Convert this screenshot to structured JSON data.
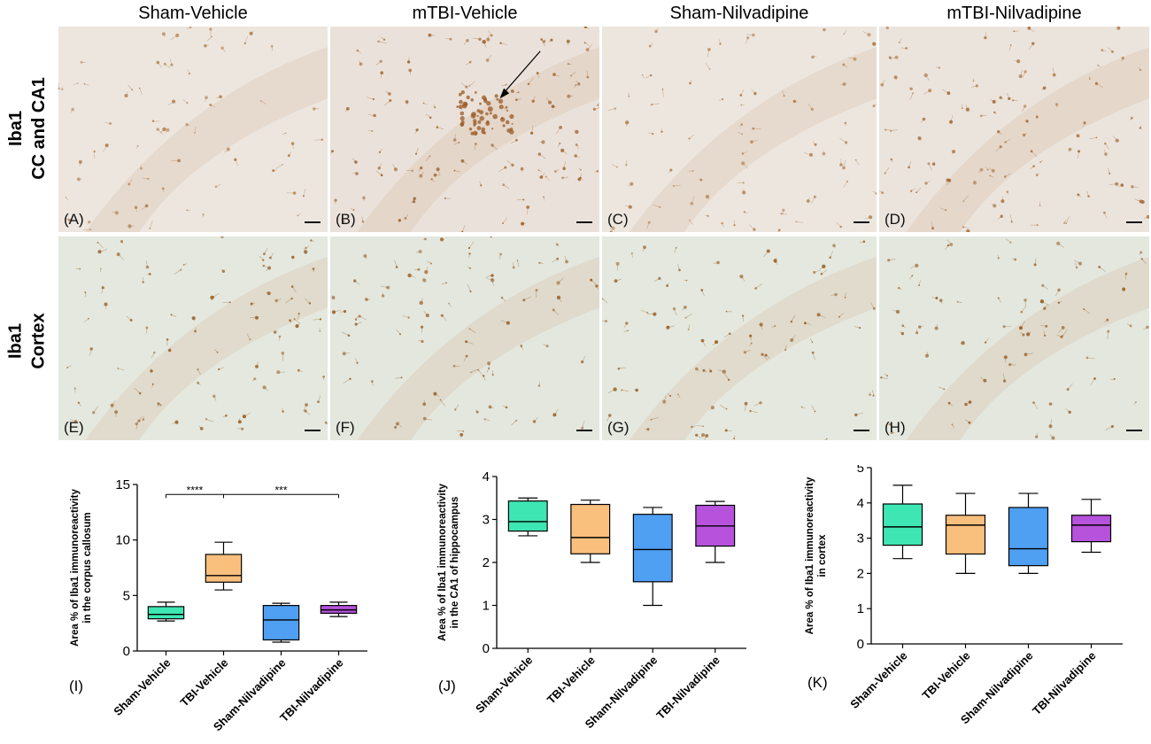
{
  "column_titles": [
    "Sham-Vehicle",
    "mTBI-Vehicle",
    "Sham-Nilvadipine",
    "mTBI-Nilvadipine"
  ],
  "row_labels": [
    {
      "line1": "Iba1",
      "line2": "CC and CA1"
    },
    {
      "line1": "Iba1",
      "line2": "Cortex"
    }
  ],
  "panels": [
    {
      "letter": "(A)",
      "tone": "#ece6df",
      "stain": "#b07c4a",
      "density": 70,
      "cluster": false
    },
    {
      "letter": "(B)",
      "tone": "#eae2da",
      "stain": "#a0652f",
      "density": 120,
      "cluster": true
    },
    {
      "letter": "(C)",
      "tone": "#ece6df",
      "stain": "#b07c4a",
      "density": 80,
      "cluster": false
    },
    {
      "letter": "(D)",
      "tone": "#ebe4dd",
      "stain": "#a86e3a",
      "density": 110,
      "cluster": false
    },
    {
      "letter": "(E)",
      "tone": "#e4e8de",
      "stain": "#9a6128",
      "density": 95,
      "cluster": false
    },
    {
      "letter": "(F)",
      "tone": "#e3e7de",
      "stain": "#9a6128",
      "density": 90,
      "cluster": false
    },
    {
      "letter": "(G)",
      "tone": "#e4e8de",
      "stain": "#9a6128",
      "density": 90,
      "cluster": false
    },
    {
      "letter": "(H)",
      "tone": "#e3e7de",
      "stain": "#9a6128",
      "density": 80,
      "cluster": false
    }
  ],
  "colors": {
    "Sham-Vehicle": "#3ee6b3",
    "TBI-Vehicle": "#f9bf7d",
    "Sham-Nilvadipine": "#4f9ff2",
    "TBI-Nilvadipine": "#b652dc"
  },
  "chart_data": [
    {
      "type": "box",
      "letter": "(I)",
      "ylabel": "Area % of Iba1 immunoreactivity in the corpus callosum",
      "ylim": [
        0,
        15
      ],
      "yticks": [
        0,
        5,
        10,
        15
      ],
      "categories": [
        "Sham-Vehicle",
        "TBI-Vehicle",
        "Sham-Nilvadipine",
        "TBI-Nilvadipine"
      ],
      "boxes": [
        {
          "min": 2.7,
          "q1": 2.9,
          "median": 3.3,
          "q3": 4.0,
          "max": 4.4
        },
        {
          "min": 5.5,
          "q1": 6.2,
          "median": 6.8,
          "q3": 8.7,
          "max": 9.8
        },
        {
          "min": 0.8,
          "q1": 1.0,
          "median": 2.8,
          "q3": 4.1,
          "max": 4.3
        },
        {
          "min": 3.1,
          "q1": 3.4,
          "median": 3.7,
          "q3": 4.1,
          "max": 4.4
        }
      ],
      "significance": [
        {
          "from": 0,
          "to": 1,
          "label": "****",
          "y": 14.1
        },
        {
          "from": 1,
          "to": 3,
          "label": "***",
          "y": 14.1
        }
      ]
    },
    {
      "type": "box",
      "letter": "(J)",
      "ylabel": "Area % of Iba1 immunoreactivity in the CA1 of hippocampus",
      "ylim": [
        0,
        4
      ],
      "yticks": [
        0,
        1,
        2,
        3,
        4
      ],
      "categories": [
        "Sham-Vehicle",
        "TBI-Vehicle",
        "Sham-Nilvadipine",
        "TBI-Nilvadipine"
      ],
      "boxes": [
        {
          "min": 2.62,
          "q1": 2.73,
          "median": 2.95,
          "q3": 3.43,
          "max": 3.5
        },
        {
          "min": 2.0,
          "q1": 2.2,
          "median": 2.58,
          "q3": 3.35,
          "max": 3.45
        },
        {
          "min": 1.0,
          "q1": 1.55,
          "median": 2.3,
          "q3": 3.12,
          "max": 3.28
        },
        {
          "min": 2.0,
          "q1": 2.38,
          "median": 2.85,
          "q3": 3.33,
          "max": 3.42
        }
      ],
      "significance": []
    },
    {
      "type": "box",
      "letter": "(K)",
      "ylabel": "Area % of Iba1 immunoreactivity in cortex",
      "ylim": [
        0,
        5
      ],
      "yticks": [
        0,
        1,
        2,
        3,
        4,
        5
      ],
      "categories": [
        "Sham-Vehicle",
        "TBI-Vehicle",
        "Sham-Nilvadipine",
        "TBI-Nilvadipine"
      ],
      "boxes": [
        {
          "min": 2.42,
          "q1": 2.8,
          "median": 3.32,
          "q3": 3.97,
          "max": 4.5
        },
        {
          "min": 2.0,
          "q1": 2.55,
          "median": 3.37,
          "q3": 3.65,
          "max": 4.27
        },
        {
          "min": 2.0,
          "q1": 2.22,
          "median": 2.7,
          "q3": 3.87,
          "max": 4.27
        },
        {
          "min": 2.6,
          "q1": 2.9,
          "median": 3.37,
          "q3": 3.65,
          "max": 4.1
        }
      ],
      "significance": []
    }
  ]
}
